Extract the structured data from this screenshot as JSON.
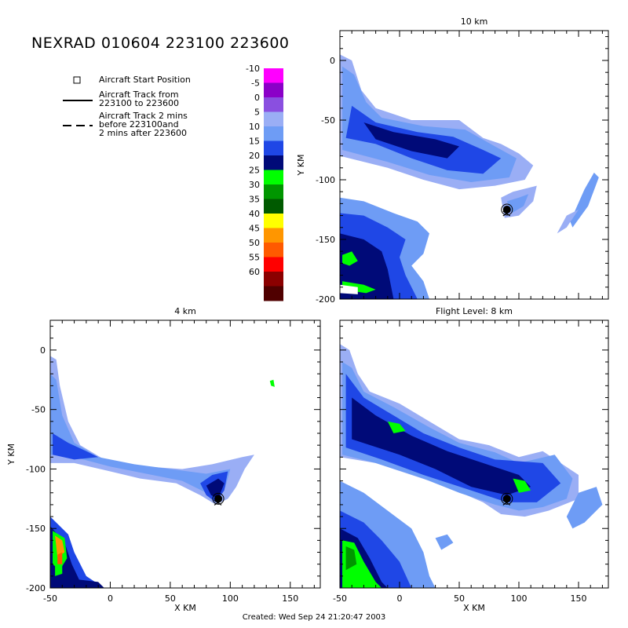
{
  "header": {
    "title": "NEXRAD 010604 223100 223600"
  },
  "legend": {
    "start_label": "Aircraft Start Position",
    "track_label": "Aircraft Track from\n223100 to 223600",
    "track2_label": "Aircraft Track 2 mins\nbefore 223100and\n2 mins after 223600"
  },
  "colorbar": {
    "levels": [
      {
        "label": "-10",
        "color": "#ff00ff"
      },
      {
        "label": "-5",
        "color": "#8b00c8"
      },
      {
        "label": "0",
        "color": "#8a4fe0"
      },
      {
        "label": "5",
        "color": "#9aaef5"
      },
      {
        "label": "10",
        "color": "#6e9cf5"
      },
      {
        "label": "15",
        "color": "#1f47e6"
      },
      {
        "label": "20",
        "color": "#000a78"
      },
      {
        "label": "25",
        "color": "#00ff00"
      },
      {
        "label": "30",
        "color": "#009600"
      },
      {
        "label": "35",
        "color": "#005a00"
      },
      {
        "label": "40",
        "color": "#ffff00"
      },
      {
        "label": "45",
        "color": "#ff9600"
      },
      {
        "label": "50",
        "color": "#ff5a00"
      },
      {
        "label": "55",
        "color": "#ff0000"
      },
      {
        "label": "60",
        "color": "#8b0000"
      },
      {
        "label": "",
        "color": "#500000"
      }
    ]
  },
  "footer": {
    "created": "Created: Wed Sep 24 21:20:47 2003"
  },
  "chart_data": [
    {
      "type": "heatmap",
      "title": "10 km",
      "xlabel": "",
      "ylabel": "Y KM",
      "xlim": [
        -50,
        175
      ],
      "ylim": [
        -200,
        25
      ],
      "xticks": [],
      "yticks": [
        0,
        -50,
        -100,
        -150,
        -200
      ],
      "aircraft_position": [
        90,
        -125
      ]
    },
    {
      "type": "heatmap",
      "title": "4 km",
      "xlabel": "X KM",
      "ylabel": "Y KM",
      "xlim": [
        -50,
        175
      ],
      "ylim": [
        -200,
        25
      ],
      "xticks": [
        -50,
        0,
        50,
        100,
        150
      ],
      "yticks": [
        0,
        -50,
        -100,
        -150,
        -200
      ],
      "aircraft_position": [
        90,
        -125
      ]
    },
    {
      "type": "heatmap",
      "title": "Flight Level: 8 km",
      "xlabel": "X KM",
      "ylabel": "",
      "xlim": [
        -50,
        175
      ],
      "ylim": [
        -200,
        25
      ],
      "xticks": [
        -50,
        0,
        50,
        100,
        150
      ],
      "yticks": [],
      "aircraft_position": [
        90,
        -125
      ]
    }
  ]
}
